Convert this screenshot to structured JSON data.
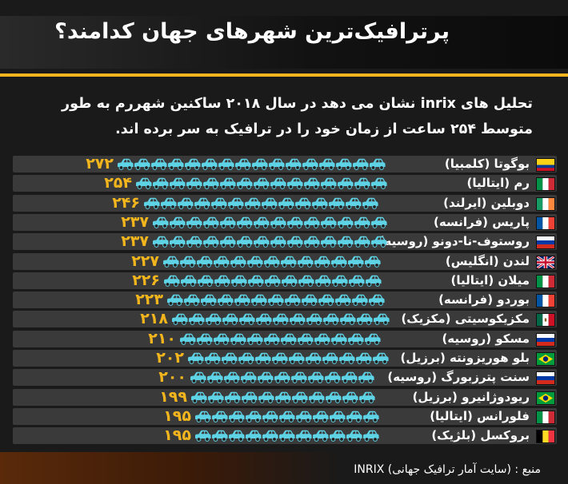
{
  "title": "پرترافیک‌ترین شهرهای جهان کدامند؟",
  "intro": {
    "line1": "تحلیل های inrix نشان می دهد در سال ۲۰۱۸ ساکنین شهررم به طور",
    "line2": "متوسط ۲۵۴ ساعت از زمان خود را در ترافیک به سر برده اند."
  },
  "colors": {
    "accent": "#f2b51d",
    "car": "#5fd3e6",
    "row_bg": "#3a3a3a",
    "background": "#1a1a1a"
  },
  "chart_data": {
    "type": "bar",
    "orientation": "horizontal",
    "unit_icon": "car-icon",
    "categories": [
      "بوگوتا (کلمبیا)",
      "رم (ایتالیا)",
      "دوبلین (ایرلند)",
      "پاریس (فرانسه)",
      "روستوف-نا-دونو (روسیه)",
      "لندن (انگلیس)",
      "میلان (ایتالیا)",
      "بوردو (فرانسه)",
      "مکزیکوسیتی (مکزیک)",
      "مسکو (روسیه)",
      "بلو هوریزونته (برزیل)",
      "سنت پترزبورگ (روسیه)",
      "ریودوژانیرو (برزیل)",
      "فلورانس (ایتالیا)",
      "بروکسل (بلژیک)"
    ],
    "flags": [
      "colombia-flag-icon",
      "italy-flag-icon",
      "ireland-flag-icon",
      "france-flag-icon",
      "russia-flag-icon",
      "uk-flag-icon",
      "italy-flag-icon",
      "france-flag-icon",
      "mexico-flag-icon",
      "russia-flag-icon",
      "brazil-flag-icon",
      "russia-flag-icon",
      "brazil-flag-icon",
      "italy-flag-icon",
      "belgium-flag-icon"
    ],
    "values": [
      272,
      254,
      246,
      237,
      237,
      227,
      226,
      223,
      218,
      210,
      202,
      200,
      199,
      195,
      195
    ],
    "value_labels": [
      "۲۷۲",
      "۲۵۴",
      "۲۴۶",
      "۲۳۷",
      "۲۳۷",
      "۲۲۷",
      "۲۲۶",
      "۲۲۳",
      "۲۱۸",
      "۲۱۰",
      "۲۰۲",
      "۲۰۰",
      "۱۹۹",
      "۱۹۵",
      "۱۹۵"
    ]
  },
  "source": "منبع : (سایت آمار ترافیک جهانی) INRIX"
}
